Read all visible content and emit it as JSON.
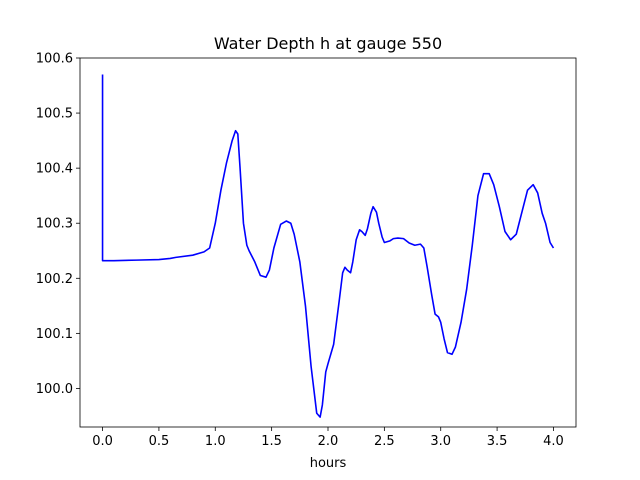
{
  "chart_data": {
    "type": "line",
    "title": "Water Depth h at gauge 550",
    "xlabel": "hours",
    "ylabel": "",
    "xlim": [
      -0.2,
      4.2
    ],
    "ylim": [
      99.93,
      100.6
    ],
    "x_ticks": [
      0.0,
      0.5,
      1.0,
      1.5,
      2.0,
      2.5,
      3.0,
      3.5,
      4.0
    ],
    "x_tick_labels": [
      "0.0",
      "0.5",
      "1.0",
      "1.5",
      "2.0",
      "2.5",
      "3.0",
      "3.5",
      "4.0"
    ],
    "y_ticks": [
      100.0,
      100.1,
      100.2,
      100.3,
      100.4,
      100.5,
      100.6
    ],
    "y_tick_labels": [
      "100.0",
      "100.1",
      "100.2",
      "100.3",
      "100.4",
      "100.5",
      "100.6"
    ],
    "grid": false,
    "series": [
      {
        "color": "#0000ff",
        "x": [
          0.0,
          0.0,
          0.0,
          0.1,
          0.3,
          0.5,
          0.6,
          0.65,
          0.8,
          0.9,
          0.95,
          1.0,
          1.05,
          1.1,
          1.15,
          1.18,
          1.2,
          1.22,
          1.25,
          1.28,
          1.3,
          1.35,
          1.4,
          1.45,
          1.48,
          1.52,
          1.58,
          1.63,
          1.67,
          1.7,
          1.75,
          1.8,
          1.85,
          1.9,
          1.93,
          1.95,
          1.98,
          2.0,
          2.05,
          2.1,
          2.13,
          2.15,
          2.17,
          2.2,
          2.22,
          2.25,
          2.28,
          2.3,
          2.33,
          2.35,
          2.38,
          2.4,
          2.43,
          2.45,
          2.48,
          2.5,
          2.55,
          2.58,
          2.62,
          2.67,
          2.72,
          2.77,
          2.82,
          2.85,
          2.88,
          2.92,
          2.95,
          2.98,
          3.0,
          3.03,
          3.06,
          3.1,
          3.13,
          3.18,
          3.23,
          3.28,
          3.33,
          3.38,
          3.43,
          3.47,
          3.52,
          3.57,
          3.62,
          3.67,
          3.72,
          3.77,
          3.82,
          3.86,
          3.9,
          3.93,
          3.97,
          4.0
        ],
        "y": [
          100.57,
          100.4,
          100.232,
          100.232,
          100.233,
          100.234,
          100.236,
          100.238,
          100.242,
          100.248,
          100.255,
          100.3,
          100.36,
          100.41,
          100.45,
          100.468,
          100.462,
          100.4,
          100.3,
          100.26,
          100.25,
          100.23,
          100.205,
          100.202,
          100.215,
          100.255,
          100.298,
          100.304,
          100.3,
          100.28,
          100.23,
          100.15,
          100.04,
          99.955,
          99.948,
          99.97,
          100.03,
          100.045,
          100.08,
          100.16,
          100.21,
          100.22,
          100.215,
          100.21,
          100.23,
          100.27,
          100.288,
          100.285,
          100.278,
          100.29,
          100.318,
          100.33,
          100.32,
          100.3,
          100.275,
          100.265,
          100.268,
          100.272,
          100.273,
          100.272,
          100.264,
          100.26,
          100.262,
          100.255,
          100.22,
          100.17,
          100.135,
          100.13,
          100.12,
          100.09,
          100.065,
          100.062,
          100.075,
          100.12,
          100.18,
          100.26,
          100.35,
          100.39,
          100.39,
          100.37,
          100.33,
          100.285,
          100.27,
          100.28,
          100.32,
          100.36,
          100.37,
          100.355,
          100.318,
          100.3,
          100.265,
          100.255
        ]
      }
    ]
  }
}
